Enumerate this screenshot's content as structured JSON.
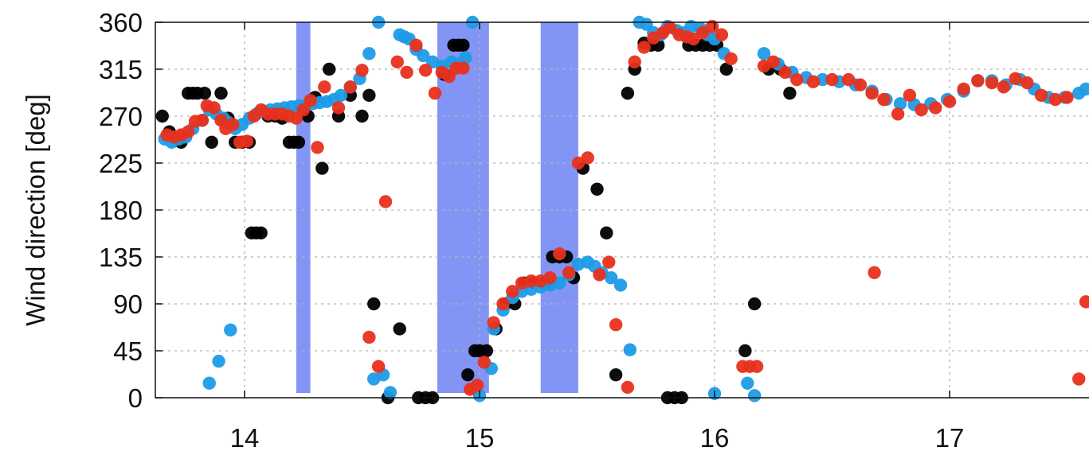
{
  "chart_data": {
    "type": "scatter",
    "title": "",
    "xlabel": "",
    "ylabel": "Wind direction [deg]",
    "xlim": [
      13.62,
      17.58
    ],
    "ylim": [
      0,
      360
    ],
    "xticks": [
      14,
      15,
      16,
      17
    ],
    "yticks": [
      0,
      45,
      90,
      135,
      180,
      225,
      270,
      315,
      360
    ],
    "grid": true,
    "legend": "none",
    "colors": {
      "black": "#000000",
      "blue": "#1e9be6",
      "red": "#e8301c",
      "band": "#7286f3"
    },
    "shaded_intervals": [
      [
        14.22,
        14.28
      ],
      [
        14.82,
        15.04
      ],
      [
        15.26,
        15.42
      ]
    ],
    "series": [
      {
        "color": "black",
        "points": [
          [
            13.65,
            270
          ],
          [
            13.68,
            255
          ],
          [
            13.7,
            250
          ],
          [
            13.73,
            245
          ],
          [
            13.76,
            292
          ],
          [
            13.78,
            292
          ],
          [
            13.8,
            292
          ],
          [
            13.83,
            292
          ],
          [
            13.86,
            245
          ],
          [
            13.9,
            292
          ],
          [
            13.93,
            268
          ],
          [
            13.96,
            245
          ],
          [
            13.99,
            245
          ],
          [
            14.02,
            245
          ],
          [
            14.03,
            158
          ],
          [
            14.05,
            158
          ],
          [
            14.07,
            158
          ],
          [
            14.1,
            270
          ],
          [
            14.13,
            270
          ],
          [
            14.16,
            268
          ],
          [
            14.19,
            245
          ],
          [
            14.21,
            245
          ],
          [
            14.23,
            245
          ],
          [
            14.27,
            270
          ],
          [
            14.3,
            288
          ],
          [
            14.33,
            220
          ],
          [
            14.36,
            315
          ],
          [
            14.4,
            270
          ],
          [
            14.45,
            290
          ],
          [
            14.5,
            270
          ],
          [
            14.53,
            290
          ],
          [
            14.55,
            90
          ],
          [
            14.61,
            0
          ],
          [
            14.66,
            66
          ],
          [
            14.74,
            0
          ],
          [
            14.77,
            0
          ],
          [
            14.8,
            0
          ],
          [
            14.85,
            310
          ],
          [
            14.89,
            338
          ],
          [
            14.91,
            338
          ],
          [
            14.93,
            338
          ],
          [
            14.95,
            22
          ],
          [
            14.98,
            45
          ],
          [
            15.0,
            45
          ],
          [
            15.03,
            45
          ],
          [
            15.07,
            66
          ],
          [
            15.11,
            90
          ],
          [
            15.15,
            90
          ],
          [
            15.19,
            110
          ],
          [
            15.23,
            110
          ],
          [
            15.28,
            110
          ],
          [
            15.31,
            135
          ],
          [
            15.34,
            135
          ],
          [
            15.37,
            135
          ],
          [
            15.4,
            115
          ],
          [
            15.44,
            220
          ],
          [
            15.5,
            200
          ],
          [
            15.54,
            158
          ],
          [
            15.58,
            22
          ],
          [
            15.63,
            292
          ],
          [
            15.66,
            315
          ],
          [
            15.7,
            340
          ],
          [
            15.73,
            338
          ],
          [
            15.76,
            338
          ],
          [
            15.8,
            0
          ],
          [
            15.83,
            0
          ],
          [
            15.86,
            0
          ],
          [
            15.89,
            338
          ],
          [
            15.92,
            338
          ],
          [
            15.95,
            338
          ],
          [
            15.98,
            338
          ],
          [
            16.01,
            338
          ],
          [
            16.05,
            315
          ],
          [
            16.13,
            45
          ],
          [
            16.17,
            90
          ],
          [
            16.23,
            315
          ],
          [
            16.28,
            315
          ],
          [
            16.32,
            292
          ]
        ]
      },
      {
        "color": "blue",
        "points": [
          [
            13.66,
            248
          ],
          [
            13.69,
            245
          ],
          [
            13.72,
            248
          ],
          [
            13.75,
            250
          ],
          [
            13.78,
            258
          ],
          [
            13.82,
            266
          ],
          [
            13.85,
            276
          ],
          [
            13.88,
            272
          ],
          [
            13.91,
            268
          ],
          [
            13.93,
            264
          ],
          [
            13.96,
            258
          ],
          [
            13.99,
            262
          ],
          [
            14.02,
            268
          ],
          [
            14.05,
            272
          ],
          [
            14.08,
            275
          ],
          [
            14.11,
            276
          ],
          [
            14.14,
            277
          ],
          [
            14.17,
            278
          ],
          [
            14.2,
            279
          ],
          [
            14.23,
            280
          ],
          [
            14.26,
            280
          ],
          [
            14.29,
            282
          ],
          [
            14.32,
            283
          ],
          [
            14.35,
            284
          ],
          [
            14.38,
            286
          ],
          [
            14.41,
            290
          ],
          [
            14.45,
            298
          ],
          [
            14.49,
            306
          ],
          [
            14.53,
            330
          ],
          [
            14.57,
            360
          ],
          [
            13.85,
            14
          ],
          [
            13.89,
            35
          ],
          [
            13.94,
            65
          ],
          [
            14.55,
            18
          ],
          [
            14.59,
            22
          ],
          [
            14.62,
            5
          ],
          [
            14.66,
            348
          ],
          [
            14.68,
            346
          ],
          [
            14.7,
            344
          ],
          [
            14.73,
            334
          ],
          [
            14.76,
            328
          ],
          [
            14.8,
            322
          ],
          [
            14.84,
            318
          ],
          [
            14.88,
            322
          ],
          [
            14.91,
            320
          ],
          [
            14.94,
            326
          ],
          [
            14.97,
            360
          ],
          [
            15.0,
            2
          ],
          [
            15.05,
            28
          ],
          [
            15.06,
            66
          ],
          [
            15.1,
            84
          ],
          [
            15.14,
            96
          ],
          [
            15.18,
            102
          ],
          [
            15.22,
            104
          ],
          [
            15.26,
            106
          ],
          [
            15.3,
            108
          ],
          [
            15.34,
            110
          ],
          [
            15.38,
            118
          ],
          [
            15.42,
            128
          ],
          [
            15.46,
            130
          ],
          [
            15.49,
            126
          ],
          [
            15.52,
            120
          ],
          [
            15.56,
            115
          ],
          [
            15.6,
            108
          ],
          [
            15.64,
            46
          ],
          [
            15.68,
            360
          ],
          [
            15.71,
            358
          ],
          [
            15.74,
            350
          ],
          [
            15.77,
            348
          ],
          [
            15.8,
            356
          ],
          [
            15.84,
            352
          ],
          [
            15.87,
            350
          ],
          [
            15.9,
            356
          ],
          [
            15.94,
            354
          ],
          [
            15.97,
            348
          ],
          [
            16.0,
            344
          ],
          [
            16.04,
            330
          ],
          [
            16.0,
            4
          ],
          [
            16.14,
            14
          ],
          [
            16.17,
            2
          ],
          [
            16.21,
            330
          ],
          [
            16.27,
            320
          ],
          [
            16.33,
            312
          ],
          [
            16.39,
            307
          ],
          [
            16.46,
            305
          ],
          [
            16.53,
            303
          ],
          [
            16.6,
            300
          ],
          [
            16.67,
            294
          ],
          [
            16.73,
            286
          ],
          [
            16.79,
            282
          ],
          [
            16.85,
            281
          ],
          [
            16.92,
            282
          ],
          [
            16.99,
            286
          ],
          [
            17.06,
            294
          ],
          [
            17.12,
            304
          ],
          [
            17.18,
            304
          ],
          [
            17.24,
            300
          ],
          [
            17.3,
            305
          ],
          [
            17.36,
            296
          ],
          [
            17.42,
            288
          ],
          [
            17.49,
            288
          ],
          [
            17.55,
            292
          ],
          [
            17.58,
            296
          ]
        ]
      },
      {
        "color": "red",
        "points": [
          [
            13.67,
            252
          ],
          [
            13.7,
            250
          ],
          [
            13.73,
            252
          ],
          [
            13.76,
            255
          ],
          [
            13.79,
            265
          ],
          [
            13.82,
            266
          ],
          [
            13.84,
            280
          ],
          [
            13.87,
            278
          ],
          [
            13.9,
            266
          ],
          [
            13.92,
            258
          ],
          [
            13.95,
            262
          ],
          [
            13.98,
            245
          ],
          [
            14.01,
            246
          ],
          [
            14.04,
            270
          ],
          [
            14.07,
            276
          ],
          [
            14.1,
            272
          ],
          [
            14.13,
            272
          ],
          [
            14.16,
            272
          ],
          [
            14.19,
            270
          ],
          [
            14.22,
            268
          ],
          [
            14.25,
            276
          ],
          [
            14.28,
            285
          ],
          [
            14.31,
            240
          ],
          [
            14.34,
            298
          ],
          [
            14.4,
            278
          ],
          [
            14.45,
            298
          ],
          [
            14.5,
            314
          ],
          [
            14.53,
            58
          ],
          [
            14.57,
            30
          ],
          [
            14.6,
            188
          ],
          [
            14.65,
            322
          ],
          [
            14.69,
            312
          ],
          [
            14.73,
            338
          ],
          [
            14.77,
            314
          ],
          [
            14.81,
            292
          ],
          [
            14.84,
            312
          ],
          [
            14.87,
            308
          ],
          [
            14.9,
            316
          ],
          [
            14.93,
            316
          ],
          [
            14.96,
            8
          ],
          [
            14.99,
            12
          ],
          [
            15.02,
            34
          ],
          [
            15.06,
            72
          ],
          [
            15.1,
            90
          ],
          [
            15.14,
            102
          ],
          [
            15.18,
            110
          ],
          [
            15.22,
            112
          ],
          [
            15.26,
            112
          ],
          [
            15.3,
            115
          ],
          [
            15.34,
            138
          ],
          [
            15.38,
            120
          ],
          [
            15.42,
            225
          ],
          [
            15.46,
            230
          ],
          [
            15.51,
            118
          ],
          [
            15.55,
            130
          ],
          [
            15.58,
            70
          ],
          [
            15.63,
            10
          ],
          [
            15.66,
            322
          ],
          [
            15.7,
            336
          ],
          [
            15.74,
            345
          ],
          [
            15.78,
            350
          ],
          [
            15.81,
            355
          ],
          [
            15.85,
            348
          ],
          [
            15.88,
            346
          ],
          [
            15.91,
            344
          ],
          [
            15.95,
            350
          ],
          [
            15.99,
            356
          ],
          [
            16.03,
            348
          ],
          [
            16.07,
            325
          ],
          [
            16.12,
            30
          ],
          [
            16.15,
            30
          ],
          [
            16.18,
            30
          ],
          [
            16.21,
            318
          ],
          [
            16.25,
            322
          ],
          [
            16.3,
            312
          ],
          [
            16.35,
            305
          ],
          [
            16.42,
            303
          ],
          [
            16.5,
            305
          ],
          [
            16.57,
            305
          ],
          [
            16.62,
            300
          ],
          [
            16.67,
            292
          ],
          [
            16.72,
            286
          ],
          [
            16.78,
            272
          ],
          [
            16.83,
            290
          ],
          [
            16.68,
            120
          ],
          [
            16.88,
            276
          ],
          [
            16.94,
            278
          ],
          [
            17.0,
            284
          ],
          [
            17.06,
            296
          ],
          [
            17.12,
            304
          ],
          [
            17.18,
            302
          ],
          [
            17.23,
            298
          ],
          [
            17.28,
            306
          ],
          [
            17.33,
            302
          ],
          [
            17.39,
            290
          ],
          [
            17.45,
            286
          ],
          [
            17.5,
            288
          ],
          [
            17.55,
            18
          ],
          [
            17.58,
            92
          ]
        ]
      }
    ]
  }
}
